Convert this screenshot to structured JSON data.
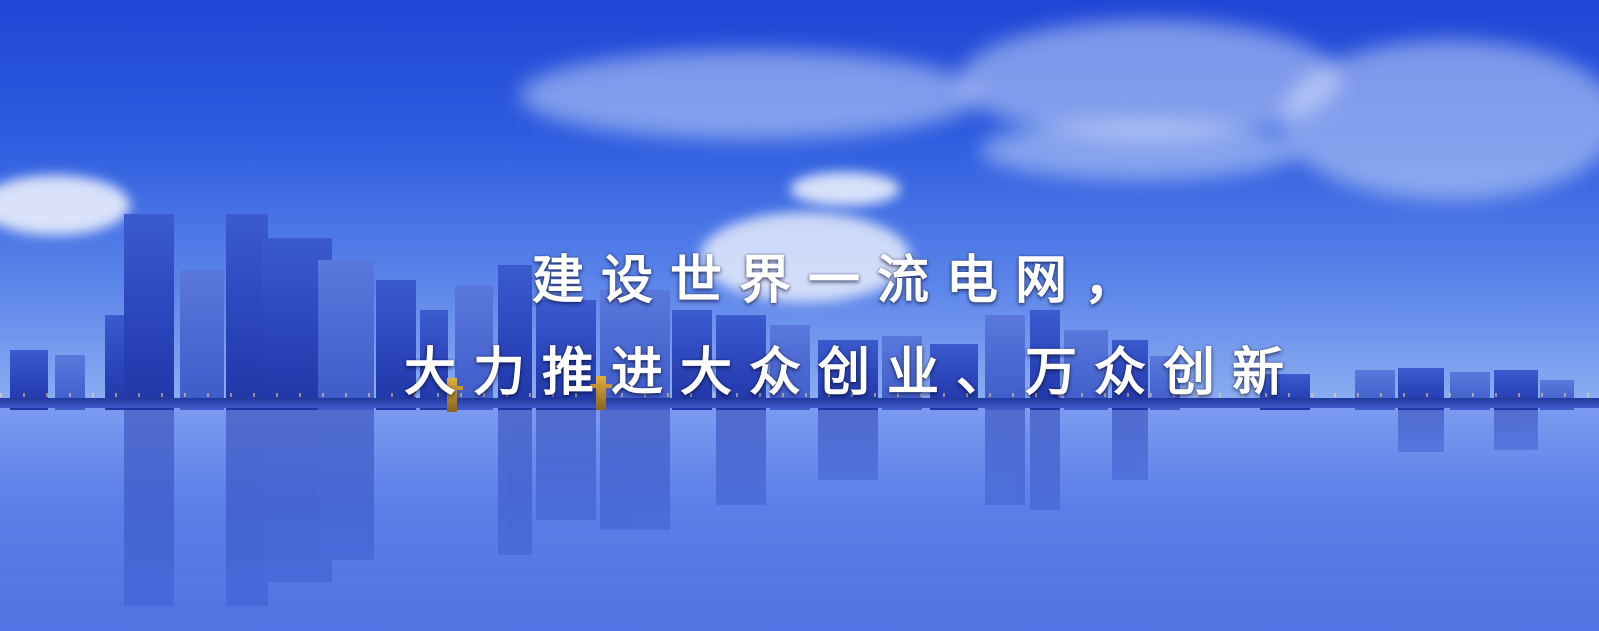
{
  "headline": {
    "line1": "建设世界一流电网，",
    "line2": "大力推进大众创业、万众创新"
  }
}
